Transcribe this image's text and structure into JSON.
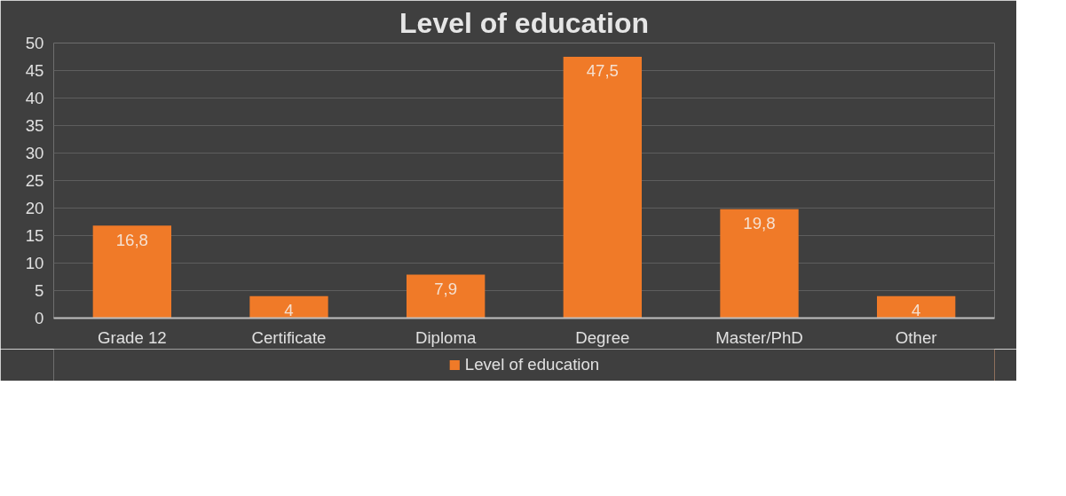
{
  "chart_data": {
    "type": "bar",
    "title": "Level of education",
    "categories": [
      "Grade 12",
      "Certificate",
      "Diploma",
      "Degree",
      "Master/PhD",
      "Other"
    ],
    "series": [
      {
        "name": "Level of education",
        "color": "#f07a28",
        "values": [
          16.8,
          4,
          7.9,
          47.5,
          19.8,
          4
        ],
        "value_labels": [
          "16,8",
          "4",
          "7,9",
          "47,5",
          "19,8",
          "4"
        ]
      }
    ],
    "ylim": [
      0,
      50
    ],
    "yticks": [
      0,
      5,
      10,
      15,
      20,
      25,
      30,
      35,
      40,
      45,
      50
    ],
    "grid": "y",
    "legend": "bottom"
  }
}
